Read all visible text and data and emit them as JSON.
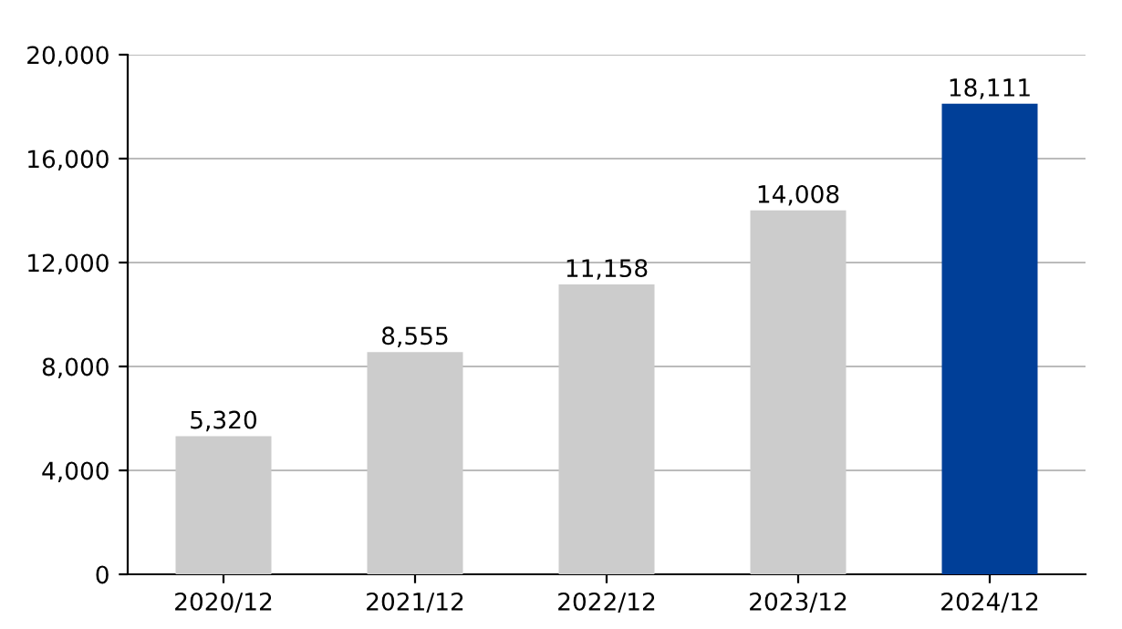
{
  "chart_data": {
    "type": "bar",
    "categories": [
      "2020/12",
      "2021/12",
      "2022/12",
      "2023/12",
      "2024/12"
    ],
    "values": [
      5320,
      8555,
      11158,
      14008,
      18111
    ],
    "colors": [
      "#cccccc",
      "#cccccc",
      "#cccccc",
      "#cccccc",
      "#003f98"
    ],
    "ylim": [
      0,
      20000
    ],
    "yticks": [
      {
        "value": 0,
        "label": "0"
      },
      {
        "value": 4000,
        "label": "4,000"
      },
      {
        "value": 8000,
        "label": "8,000"
      },
      {
        "value": 12000,
        "label": "12,000"
      },
      {
        "value": 16000,
        "label": "16,000"
      },
      {
        "value": 20000,
        "label": "20,000"
      }
    ],
    "value_labels": [
      "5,320",
      "8,555",
      "11,158",
      "14,008",
      "18,111"
    ],
    "grid": "y"
  }
}
